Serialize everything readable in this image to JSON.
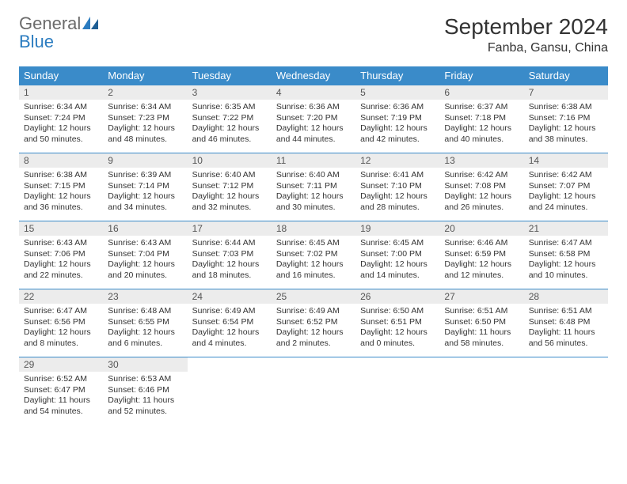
{
  "logo": {
    "general": "General",
    "blue": "Blue"
  },
  "title": "September 2024",
  "location": "Fanba, Gansu, China",
  "dayHeaders": [
    "Sunday",
    "Monday",
    "Tuesday",
    "Wednesday",
    "Thursday",
    "Friday",
    "Saturday"
  ],
  "colors": {
    "header_bg": "#3a8bc9",
    "header_text": "#ffffff",
    "daynum_bg": "#ececec",
    "border": "#3a8bc9",
    "logo_gray": "#6b6b6b",
    "logo_blue": "#2b7cc0"
  },
  "weeks": [
    [
      {
        "n": "1",
        "sr": "Sunrise: 6:34 AM",
        "ss": "Sunset: 7:24 PM",
        "dl": "Daylight: 12 hours and 50 minutes."
      },
      {
        "n": "2",
        "sr": "Sunrise: 6:34 AM",
        "ss": "Sunset: 7:23 PM",
        "dl": "Daylight: 12 hours and 48 minutes."
      },
      {
        "n": "3",
        "sr": "Sunrise: 6:35 AM",
        "ss": "Sunset: 7:22 PM",
        "dl": "Daylight: 12 hours and 46 minutes."
      },
      {
        "n": "4",
        "sr": "Sunrise: 6:36 AM",
        "ss": "Sunset: 7:20 PM",
        "dl": "Daylight: 12 hours and 44 minutes."
      },
      {
        "n": "5",
        "sr": "Sunrise: 6:36 AM",
        "ss": "Sunset: 7:19 PM",
        "dl": "Daylight: 12 hours and 42 minutes."
      },
      {
        "n": "6",
        "sr": "Sunrise: 6:37 AM",
        "ss": "Sunset: 7:18 PM",
        "dl": "Daylight: 12 hours and 40 minutes."
      },
      {
        "n": "7",
        "sr": "Sunrise: 6:38 AM",
        "ss": "Sunset: 7:16 PM",
        "dl": "Daylight: 12 hours and 38 minutes."
      }
    ],
    [
      {
        "n": "8",
        "sr": "Sunrise: 6:38 AM",
        "ss": "Sunset: 7:15 PM",
        "dl": "Daylight: 12 hours and 36 minutes."
      },
      {
        "n": "9",
        "sr": "Sunrise: 6:39 AM",
        "ss": "Sunset: 7:14 PM",
        "dl": "Daylight: 12 hours and 34 minutes."
      },
      {
        "n": "10",
        "sr": "Sunrise: 6:40 AM",
        "ss": "Sunset: 7:12 PM",
        "dl": "Daylight: 12 hours and 32 minutes."
      },
      {
        "n": "11",
        "sr": "Sunrise: 6:40 AM",
        "ss": "Sunset: 7:11 PM",
        "dl": "Daylight: 12 hours and 30 minutes."
      },
      {
        "n": "12",
        "sr": "Sunrise: 6:41 AM",
        "ss": "Sunset: 7:10 PM",
        "dl": "Daylight: 12 hours and 28 minutes."
      },
      {
        "n": "13",
        "sr": "Sunrise: 6:42 AM",
        "ss": "Sunset: 7:08 PM",
        "dl": "Daylight: 12 hours and 26 minutes."
      },
      {
        "n": "14",
        "sr": "Sunrise: 6:42 AM",
        "ss": "Sunset: 7:07 PM",
        "dl": "Daylight: 12 hours and 24 minutes."
      }
    ],
    [
      {
        "n": "15",
        "sr": "Sunrise: 6:43 AM",
        "ss": "Sunset: 7:06 PM",
        "dl": "Daylight: 12 hours and 22 minutes."
      },
      {
        "n": "16",
        "sr": "Sunrise: 6:43 AM",
        "ss": "Sunset: 7:04 PM",
        "dl": "Daylight: 12 hours and 20 minutes."
      },
      {
        "n": "17",
        "sr": "Sunrise: 6:44 AM",
        "ss": "Sunset: 7:03 PM",
        "dl": "Daylight: 12 hours and 18 minutes."
      },
      {
        "n": "18",
        "sr": "Sunrise: 6:45 AM",
        "ss": "Sunset: 7:02 PM",
        "dl": "Daylight: 12 hours and 16 minutes."
      },
      {
        "n": "19",
        "sr": "Sunrise: 6:45 AM",
        "ss": "Sunset: 7:00 PM",
        "dl": "Daylight: 12 hours and 14 minutes."
      },
      {
        "n": "20",
        "sr": "Sunrise: 6:46 AM",
        "ss": "Sunset: 6:59 PM",
        "dl": "Daylight: 12 hours and 12 minutes."
      },
      {
        "n": "21",
        "sr": "Sunrise: 6:47 AM",
        "ss": "Sunset: 6:58 PM",
        "dl": "Daylight: 12 hours and 10 minutes."
      }
    ],
    [
      {
        "n": "22",
        "sr": "Sunrise: 6:47 AM",
        "ss": "Sunset: 6:56 PM",
        "dl": "Daylight: 12 hours and 8 minutes."
      },
      {
        "n": "23",
        "sr": "Sunrise: 6:48 AM",
        "ss": "Sunset: 6:55 PM",
        "dl": "Daylight: 12 hours and 6 minutes."
      },
      {
        "n": "24",
        "sr": "Sunrise: 6:49 AM",
        "ss": "Sunset: 6:54 PM",
        "dl": "Daylight: 12 hours and 4 minutes."
      },
      {
        "n": "25",
        "sr": "Sunrise: 6:49 AM",
        "ss": "Sunset: 6:52 PM",
        "dl": "Daylight: 12 hours and 2 minutes."
      },
      {
        "n": "26",
        "sr": "Sunrise: 6:50 AM",
        "ss": "Sunset: 6:51 PM",
        "dl": "Daylight: 12 hours and 0 minutes."
      },
      {
        "n": "27",
        "sr": "Sunrise: 6:51 AM",
        "ss": "Sunset: 6:50 PM",
        "dl": "Daylight: 11 hours and 58 minutes."
      },
      {
        "n": "28",
        "sr": "Sunrise: 6:51 AM",
        "ss": "Sunset: 6:48 PM",
        "dl": "Daylight: 11 hours and 56 minutes."
      }
    ],
    [
      {
        "n": "29",
        "sr": "Sunrise: 6:52 AM",
        "ss": "Sunset: 6:47 PM",
        "dl": "Daylight: 11 hours and 54 minutes."
      },
      {
        "n": "30",
        "sr": "Sunrise: 6:53 AM",
        "ss": "Sunset: 6:46 PM",
        "dl": "Daylight: 11 hours and 52 minutes."
      },
      null,
      null,
      null,
      null,
      null
    ]
  ]
}
